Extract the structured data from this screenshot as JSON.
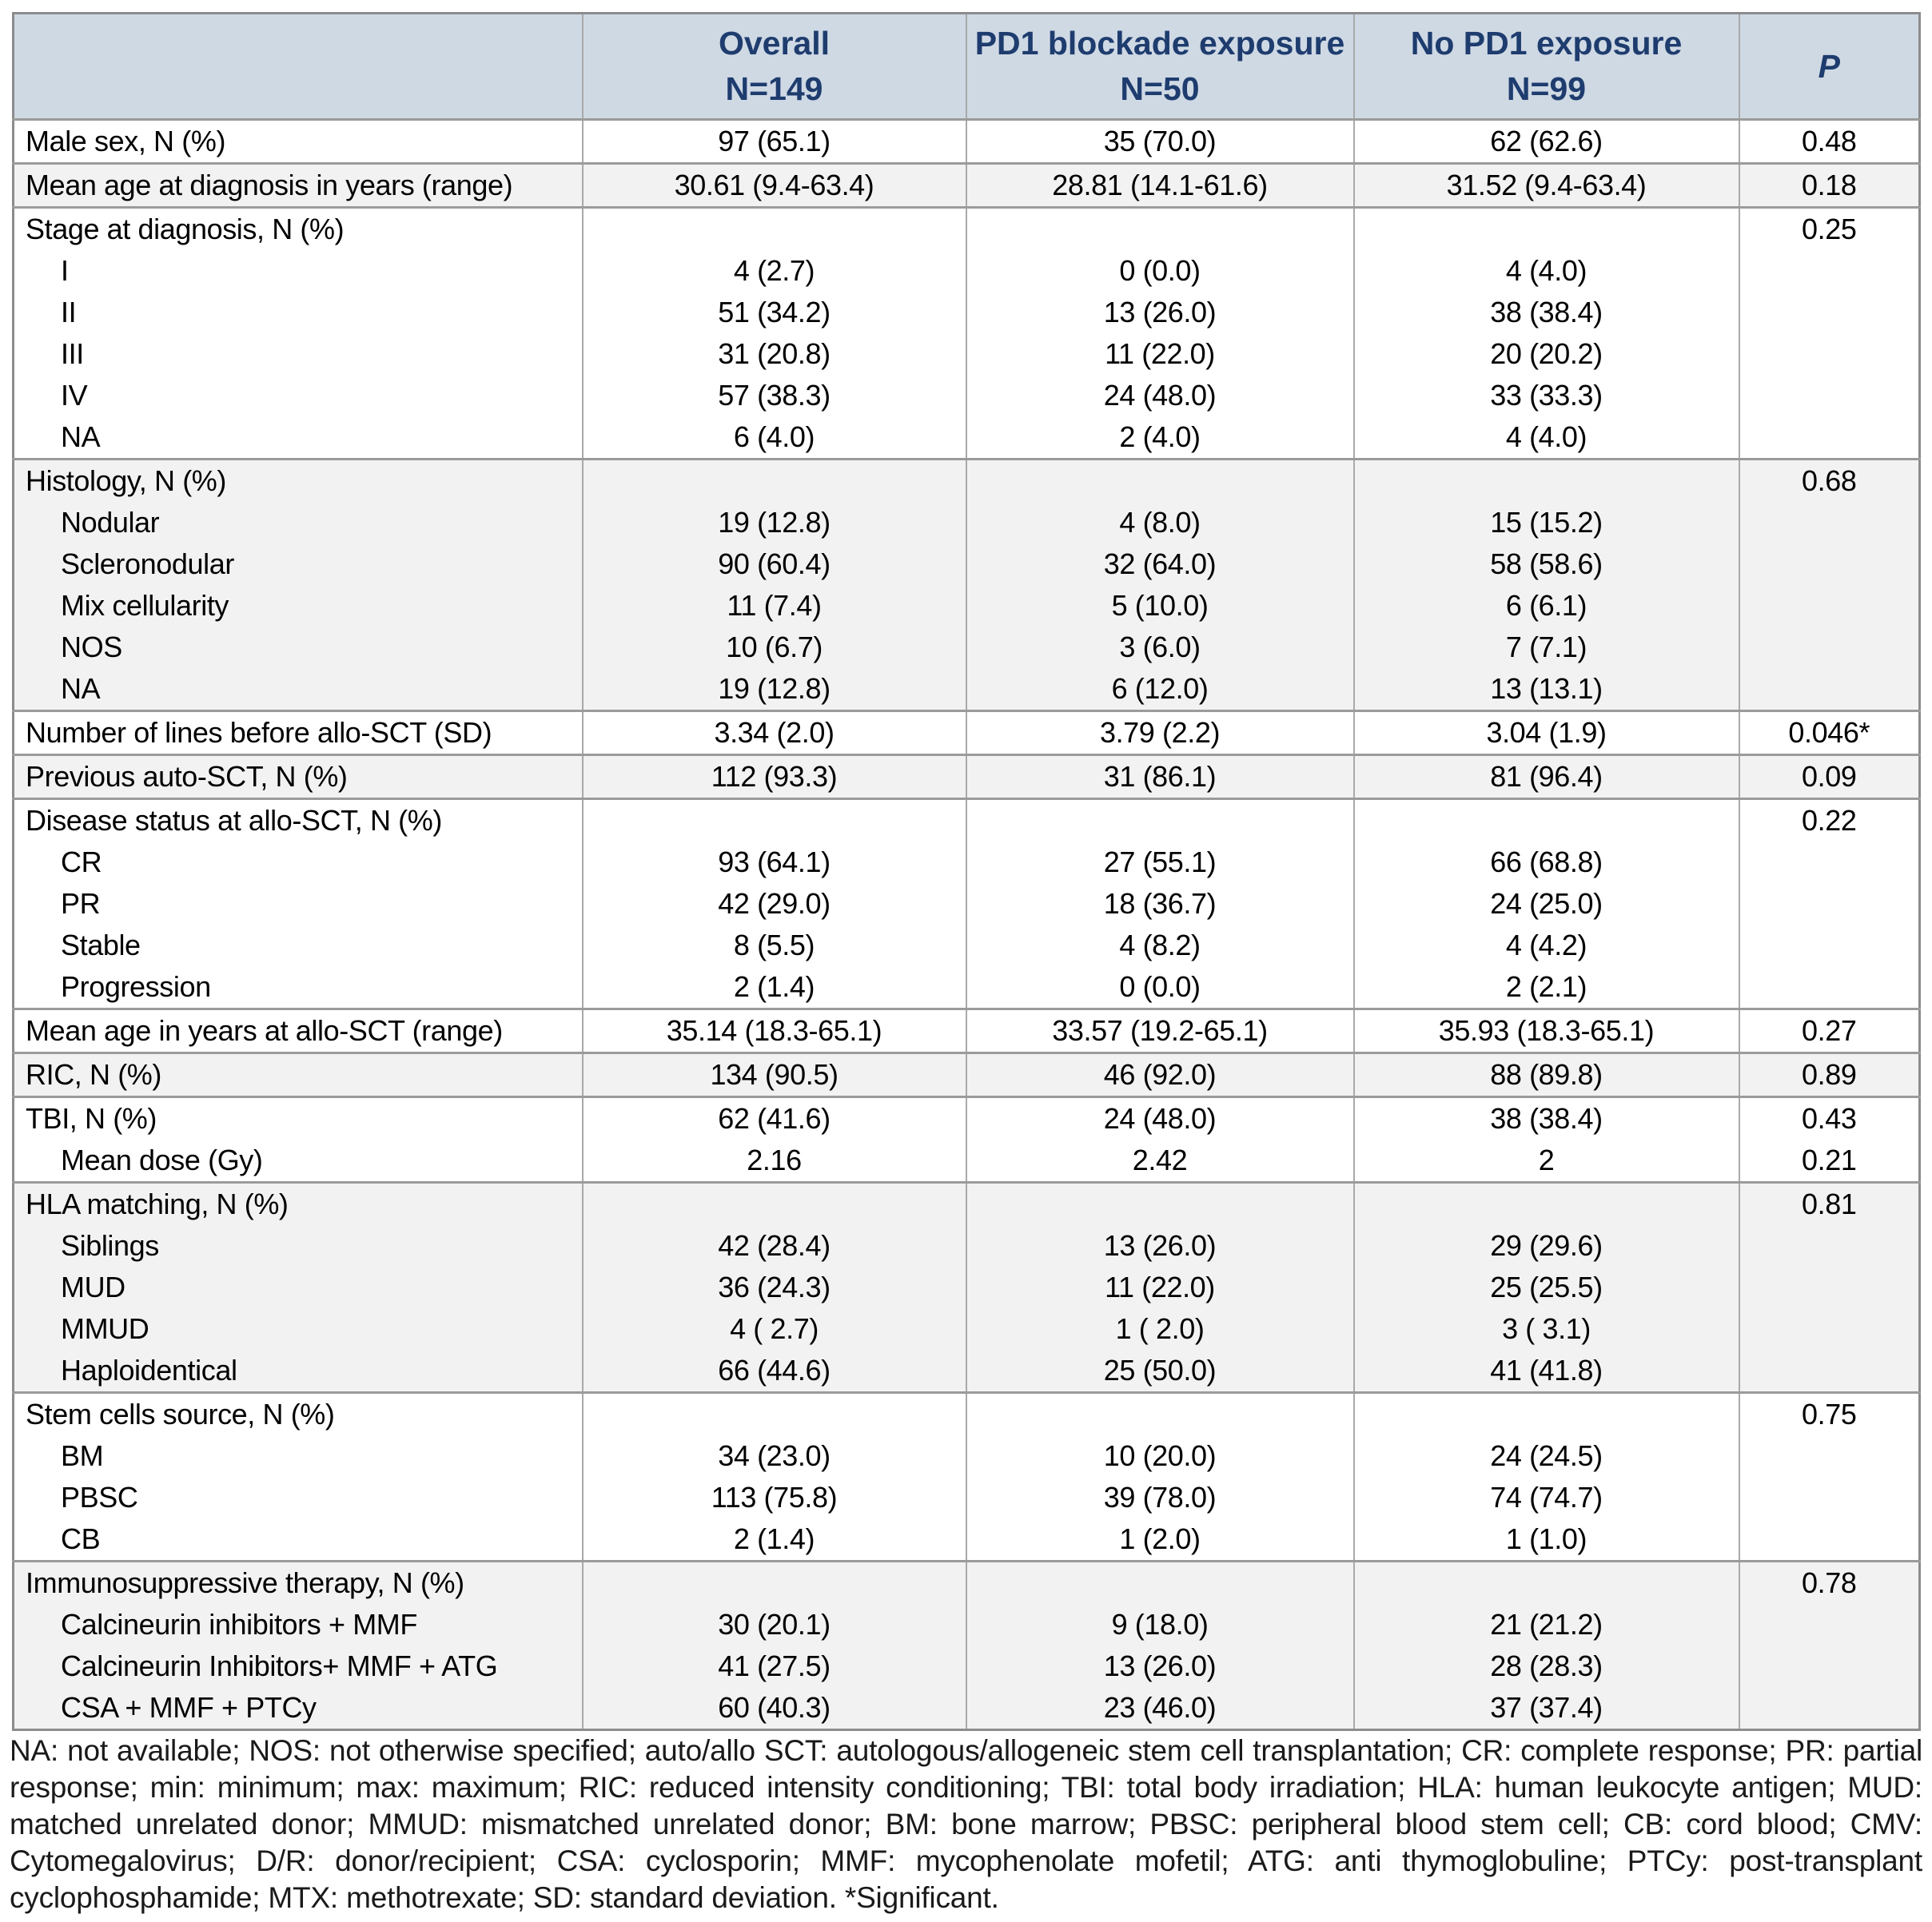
{
  "header": {
    "label_col": "",
    "overall": {
      "line1": "Overall",
      "line2": "N=149"
    },
    "pd1": {
      "line1": "PD1 blockade exposure",
      "line2": "N=50"
    },
    "no_pd1": {
      "line1": "No PD1 exposure",
      "line2": "N=99"
    },
    "p": "P"
  },
  "colors": {
    "header_bg": "#cfd9e4",
    "header_text": "#1e3c6e",
    "row_shade": "#f2f2f2",
    "group_border": "#9b9b9b",
    "outer_border": "#8c8c8c"
  },
  "groups": [
    {
      "shaded": false,
      "rows": [
        {
          "label": "Male sex, N (%)",
          "indent": false,
          "overall": "97 (65.1)",
          "pd1": "35 (70.0)",
          "no_pd1": "62 (62.6)",
          "p": "0.48"
        }
      ]
    },
    {
      "shaded": true,
      "rows": [
        {
          "label": "Mean age at diagnosis in years (range)",
          "indent": false,
          "overall": "30.61 (9.4-63.4)",
          "pd1": "28.81 (14.1-61.6)",
          "no_pd1": "31.52 (9.4-63.4)",
          "p": "0.18"
        }
      ]
    },
    {
      "shaded": false,
      "rows": [
        {
          "label": "Stage at diagnosis, N (%)",
          "indent": false,
          "overall": "",
          "pd1": "",
          "no_pd1": "",
          "p": "0.25"
        },
        {
          "label": "I",
          "indent": true,
          "overall": "4 (2.7)",
          "pd1": "0 (0.0)",
          "no_pd1": "4 (4.0)",
          "p": ""
        },
        {
          "label": "II",
          "indent": true,
          "overall": "51 (34.2)",
          "pd1": "13 (26.0)",
          "no_pd1": "38 (38.4)",
          "p": ""
        },
        {
          "label": "III",
          "indent": true,
          "overall": "31 (20.8)",
          "pd1": "11 (22.0)",
          "no_pd1": "20 (20.2)",
          "p": ""
        },
        {
          "label": "IV",
          "indent": true,
          "overall": "57 (38.3)",
          "pd1": "24 (48.0)",
          "no_pd1": "33 (33.3)",
          "p": ""
        },
        {
          "label": "NA",
          "indent": true,
          "overall": "6 (4.0)",
          "pd1": "2 (4.0)",
          "no_pd1": "4 (4.0)",
          "p": ""
        }
      ]
    },
    {
      "shaded": true,
      "rows": [
        {
          "label": "Histology, N (%)",
          "indent": false,
          "overall": "",
          "pd1": "",
          "no_pd1": "",
          "p": "0.68"
        },
        {
          "label": "Nodular",
          "indent": true,
          "overall": "19 (12.8)",
          "pd1": "4 (8.0)",
          "no_pd1": "15 (15.2)",
          "p": ""
        },
        {
          "label": "Scleronodular",
          "indent": true,
          "overall": "90 (60.4)",
          "pd1": "32 (64.0)",
          "no_pd1": "58 (58.6)",
          "p": ""
        },
        {
          "label": "Mix cellularity",
          "indent": true,
          "overall": "11 (7.4)",
          "pd1": "5 (10.0)",
          "no_pd1": "6 (6.1)",
          "p": ""
        },
        {
          "label": "NOS",
          "indent": true,
          "overall": "10 (6.7)",
          "pd1": "3 (6.0)",
          "no_pd1": "7 (7.1)",
          "p": ""
        },
        {
          "label": "NA",
          "indent": true,
          "overall": "19 (12.8)",
          "pd1": "6 (12.0)",
          "no_pd1": "13 (13.1)",
          "p": ""
        }
      ]
    },
    {
      "shaded": false,
      "rows": [
        {
          "label": "Number of lines before allo-SCT (SD)",
          "indent": false,
          "overall": "3.34 (2.0)",
          "pd1": "3.79 (2.2)",
          "no_pd1": "3.04 (1.9)",
          "p": "0.046*"
        }
      ]
    },
    {
      "shaded": true,
      "rows": [
        {
          "label": "Previous auto-SCT, N (%)",
          "indent": false,
          "overall": "112 (93.3)",
          "pd1": "31 (86.1)",
          "no_pd1": "81 (96.4)",
          "p": "0.09"
        }
      ]
    },
    {
      "shaded": false,
      "rows": [
        {
          "label": "Disease status at allo-SCT, N (%)",
          "indent": false,
          "overall": "",
          "pd1": "",
          "no_pd1": "",
          "p": "0.22"
        },
        {
          "label": "CR",
          "indent": true,
          "overall": "93 (64.1)",
          "pd1": "27 (55.1)",
          "no_pd1": "66 (68.8)",
          "p": ""
        },
        {
          "label": "PR",
          "indent": true,
          "overall": "42 (29.0)",
          "pd1": "18 (36.7)",
          "no_pd1": "24 (25.0)",
          "p": ""
        },
        {
          "label": "Stable",
          "indent": true,
          "overall": "8 (5.5)",
          "pd1": "4 (8.2)",
          "no_pd1": "4 (4.2)",
          "p": ""
        },
        {
          "label": "Progression",
          "indent": true,
          "overall": "2 (1.4)",
          "pd1": "0 (0.0)",
          "no_pd1": "2 (2.1)",
          "p": ""
        }
      ]
    },
    {
      "shaded": false,
      "rows": [
        {
          "label": "Mean age in years at allo-SCT (range)",
          "indent": false,
          "overall": "35.14 (18.3-65.1)",
          "pd1": "33.57 (19.2-65.1)",
          "no_pd1": "35.93 (18.3-65.1)",
          "p": "0.27"
        }
      ]
    },
    {
      "shaded": true,
      "rows": [
        {
          "label": "RIC, N (%)",
          "indent": false,
          "overall": "134 (90.5)",
          "pd1": "46 (92.0)",
          "no_pd1": "88 (89.8)",
          "p": "0.89"
        }
      ]
    },
    {
      "shaded": false,
      "rows": [
        {
          "label": "TBI, N (%)",
          "indent": false,
          "overall": "62 (41.6)",
          "pd1": "24 (48.0)",
          "no_pd1": "38 (38.4)",
          "p": "0.43"
        },
        {
          "label": "Mean dose (Gy)",
          "indent": true,
          "overall": "2.16",
          "pd1": "2.42",
          "no_pd1": "2",
          "p": "0.21"
        }
      ]
    },
    {
      "shaded": true,
      "rows": [
        {
          "label": "HLA matching, N (%)",
          "indent": false,
          "overall": "",
          "pd1": "",
          "no_pd1": "",
          "p": "0.81"
        },
        {
          "label": "Siblings",
          "indent": true,
          "overall": "42 (28.4)",
          "pd1": "13 (26.0)",
          "no_pd1": "29 (29.6)",
          "p": ""
        },
        {
          "label": "MUD",
          "indent": true,
          "overall": "36 (24.3)",
          "pd1": "11 (22.0)",
          "no_pd1": "25 (25.5)",
          "p": ""
        },
        {
          "label": "MMUD",
          "indent": true,
          "overall": "4 ( 2.7)",
          "pd1": "1 ( 2.0)",
          "no_pd1": "3 ( 3.1)",
          "p": ""
        },
        {
          "label": "Haploidentical",
          "indent": true,
          "overall": "66 (44.6)",
          "pd1": "25 (50.0)",
          "no_pd1": "41 (41.8)",
          "p": ""
        }
      ]
    },
    {
      "shaded": false,
      "rows": [
        {
          "label": "Stem cells source, N (%)",
          "indent": false,
          "overall": "",
          "pd1": "",
          "no_pd1": "",
          "p": "0.75"
        },
        {
          "label": "BM",
          "indent": true,
          "overall": "34 (23.0)",
          "pd1": "10 (20.0)",
          "no_pd1": "24 (24.5)",
          "p": ""
        },
        {
          "label": "PBSC",
          "indent": true,
          "overall": "113 (75.8)",
          "pd1": "39 (78.0)",
          "no_pd1": "74 (74.7)",
          "p": ""
        },
        {
          "label": "CB",
          "indent": true,
          "overall": "2 (1.4)",
          "pd1": "1 (2.0)",
          "no_pd1": "1 (1.0)",
          "p": ""
        }
      ]
    },
    {
      "shaded": true,
      "rows": [
        {
          "label": "Immunosuppressive therapy, N (%)",
          "indent": false,
          "overall": "",
          "pd1": "",
          "no_pd1": "",
          "p": "0.78"
        },
        {
          "label": "Calcineurin inhibitors + MMF",
          "indent": true,
          "overall": "30 (20.1)",
          "pd1": "9 (18.0)",
          "no_pd1": "21 (21.2)",
          "p": ""
        },
        {
          "label": "Calcineurin Inhibitors+ MMF + ATG",
          "indent": true,
          "overall": "41 (27.5)",
          "pd1": "13 (26.0)",
          "no_pd1": "28 (28.3)",
          "p": ""
        },
        {
          "label": "CSA + MMF + PTCy",
          "indent": true,
          "overall": "60 (40.3)",
          "pd1": "23 (46.0)",
          "no_pd1": "37 (37.4)",
          "p": ""
        }
      ]
    }
  ],
  "footnote": "NA: not available; NOS: not otherwise specified; auto/allo SCT: autologous/allogeneic stem cell transplantation; CR: complete response; PR: partial response; min: minimum; max: maximum; RIC: reduced intensity conditioning; TBI: total body irradiation; HLA: human leukocyte antigen; MUD: matched unrelated donor; MMUD: mismatched unrelated donor; BM: bone marrow; PBSC: peripheral blood stem cell; CB: cord blood; CMV: Cytomegalovirus; D/R: donor/recipient; CSA: cyclosporin; MMF: mycophenolate mofetil; ATG: anti thymoglobuline; PTCy: post-transplant cyclophosphamide; MTX: methotrexate; SD: standard deviation. *Significant."
}
